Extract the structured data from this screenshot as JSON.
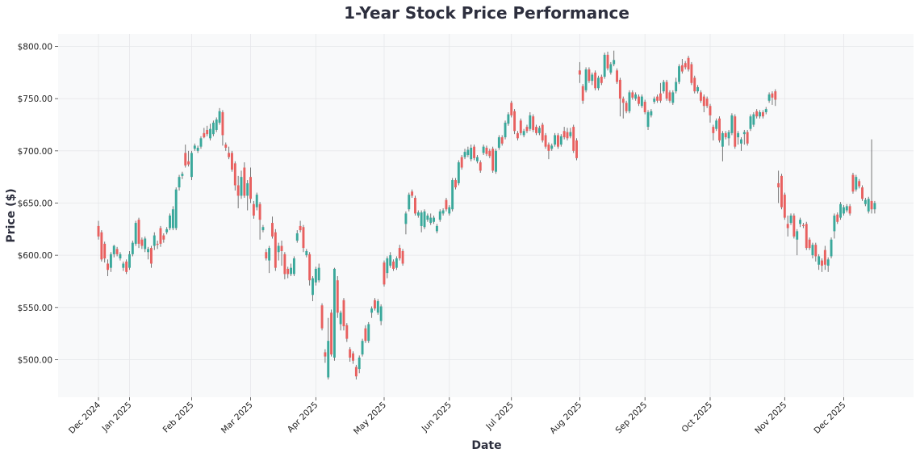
{
  "chart_data": {
    "type": "candlestick",
    "title": "1-Year Stock Price Performance",
    "xlabel": "Date",
    "ylabel": "Price ($)",
    "ylim": [
      464,
      812
    ],
    "xlim": [
      -13,
      262.5
    ],
    "grid": true,
    "up_color": "#3aa89b",
    "down_color": "#e8605f",
    "wick_color": "#666666",
    "background": "#f8f9fa",
    "y_ticks": [
      {
        "value": 500,
        "label": "$500.00"
      },
      {
        "value": 550,
        "label": "$550.00"
      },
      {
        "value": 600,
        "label": "$600.00"
      },
      {
        "value": 650,
        "label": "$650.00"
      },
      {
        "value": 700,
        "label": "$700.00"
      },
      {
        "value": 750,
        "label": "$750.00"
      },
      {
        "value": 800,
        "label": "$800.00"
      }
    ],
    "x_ticks": [
      {
        "index": 0,
        "label": "Dec 2024"
      },
      {
        "index": 10,
        "label": "Jan 2025"
      },
      {
        "index": 30,
        "label": "Feb 2025"
      },
      {
        "index": 49,
        "label": "Mar 2025"
      },
      {
        "index": 70,
        "label": "Apr 2025"
      },
      {
        "index": 92,
        "label": "May 2025"
      },
      {
        "index": 113,
        "label": "Jun 2025"
      },
      {
        "index": 133,
        "label": "Jul 2025"
      },
      {
        "index": 155,
        "label": "Aug 2025"
      },
      {
        "index": 176,
        "label": "Sep 2025"
      },
      {
        "index": 197,
        "label": "Oct 2025"
      },
      {
        "index": 221,
        "label": "Nov 2025"
      },
      {
        "index": 240,
        "label": "Dec 2025"
      }
    ],
    "ohlc_fields": [
      "open",
      "high",
      "low",
      "close"
    ],
    "ohlc": [
      [
        628,
        633,
        615,
        618
      ],
      [
        622,
        624,
        594,
        596
      ],
      [
        611,
        613,
        593,
        597
      ],
      [
        592,
        596,
        580,
        586
      ],
      [
        588,
        603,
        584,
        601
      ],
      [
        601,
        610,
        598,
        609
      ],
      [
        606,
        608,
        599,
        601
      ],
      [
        597,
        603,
        595,
        601
      ],
      [
        588,
        594,
        585,
        592
      ],
      [
        594,
        596,
        582,
        584
      ],
      [
        588,
        604,
        586,
        601
      ],
      [
        601,
        614,
        599,
        612
      ],
      [
        611,
        633,
        609,
        631
      ],
      [
        634,
        636,
        607,
        611
      ],
      [
        615,
        617,
        606,
        609
      ],
      [
        606,
        618,
        603,
        616
      ],
      [
        603,
        608,
        596,
        606
      ],
      [
        607,
        609,
        588,
        592
      ],
      [
        609,
        622,
        605,
        619
      ],
      [
        611,
        614,
        606,
        610
      ],
      [
        626,
        628,
        608,
        611
      ],
      [
        619,
        621,
        612,
        615
      ],
      [
        622,
        627,
        620,
        625
      ],
      [
        626,
        640,
        624,
        638
      ],
      [
        626,
        647,
        624,
        644
      ],
      [
        626,
        665,
        624,
        663
      ],
      [
        665,
        677,
        662,
        675
      ],
      [
        676,
        680,
        673,
        678
      ],
      [
        698,
        706,
        684,
        686
      ],
      [
        690,
        700,
        685,
        687
      ],
      [
        675,
        700,
        672,
        698
      ],
      [
        702,
        707,
        700,
        705
      ],
      [
        700,
        705,
        698,
        703
      ],
      [
        704,
        714,
        702,
        712
      ],
      [
        717,
        722,
        712,
        713
      ],
      [
        720,
        724,
        714,
        716
      ],
      [
        712,
        726,
        710,
        721
      ],
      [
        716,
        729,
        714,
        727
      ],
      [
        720,
        732,
        718,
        730
      ],
      [
        727,
        741,
        725,
        738
      ],
      [
        737,
        739,
        705,
        715
      ],
      [
        706,
        708,
        700,
        703
      ],
      [
        698,
        704,
        692,
        694
      ],
      [
        698,
        700,
        680,
        682
      ],
      [
        688,
        690,
        662,
        667
      ],
      [
        667,
        676,
        645,
        657
      ],
      [
        657,
        681,
        654,
        675
      ],
      [
        684,
        689,
        655,
        657
      ],
      [
        657,
        672,
        643,
        669
      ],
      [
        675,
        684,
        650,
        654
      ],
      [
        649,
        652,
        635,
        638
      ],
      [
        646,
        660,
        643,
        658
      ],
      [
        649,
        651,
        615,
        634
      ],
      [
        624,
        629,
        622,
        627
      ],
      [
        603,
        606,
        595,
        597
      ],
      [
        595,
        609,
        583,
        607
      ],
      [
        631,
        637,
        616,
        618
      ],
      [
        622,
        625,
        585,
        588
      ],
      [
        603,
        612,
        595,
        609
      ],
      [
        609,
        614,
        590,
        604
      ],
      [
        601,
        603,
        577,
        582
      ],
      [
        587,
        589,
        578,
        582
      ],
      [
        582,
        592,
        580,
        588
      ],
      [
        582,
        599,
        580,
        597
      ],
      [
        614,
        624,
        612,
        621
      ],
      [
        628,
        633,
        622,
        624
      ],
      [
        627,
        629,
        603,
        607
      ],
      [
        600,
        606,
        598,
        604
      ],
      [
        601,
        603,
        571,
        576
      ],
      [
        562,
        580,
        556,
        578
      ],
      [
        574,
        589,
        571,
        587
      ],
      [
        576,
        592,
        574,
        588
      ],
      [
        552,
        554,
        528,
        530
      ],
      [
        507,
        510,
        497,
        503
      ],
      [
        483,
        540,
        481,
        518
      ],
      [
        545,
        548,
        503,
        505
      ],
      [
        502,
        588,
        499,
        587
      ],
      [
        576,
        580,
        540,
        545
      ],
      [
        534,
        547,
        528,
        545
      ],
      [
        557,
        559,
        528,
        532
      ],
      [
        533,
        535,
        517,
        520
      ],
      [
        510,
        512,
        498,
        502
      ],
      [
        506,
        508,
        496,
        499
      ],
      [
        493,
        495,
        481,
        484
      ],
      [
        491,
        504,
        487,
        502
      ],
      [
        505,
        520,
        503,
        518
      ],
      [
        530,
        533,
        516,
        518
      ],
      [
        518,
        536,
        516,
        534
      ],
      [
        545,
        551,
        540,
        549
      ],
      [
        557,
        559,
        547,
        549
      ],
      [
        545,
        558,
        543,
        556
      ],
      [
        537,
        553,
        533,
        551
      ],
      [
        593,
        595,
        570,
        572
      ],
      [
        583,
        599,
        578,
        597
      ],
      [
        590,
        603,
        588,
        600
      ],
      [
        594,
        596,
        585,
        587
      ],
      [
        588,
        599,
        586,
        597
      ],
      [
        607,
        610,
        595,
        597
      ],
      [
        604,
        606,
        590,
        592
      ],
      [
        630,
        642,
        620,
        640
      ],
      [
        644,
        660,
        642,
        658
      ],
      [
        661,
        663,
        655,
        657
      ],
      [
        655,
        657,
        638,
        640
      ],
      [
        638,
        643,
        636,
        641
      ],
      [
        628,
        643,
        622,
        641
      ],
      [
        627,
        644,
        625,
        642
      ],
      [
        634,
        640,
        632,
        638
      ],
      [
        631,
        640,
        629,
        636
      ],
      [
        632,
        638,
        630,
        636
      ],
      [
        623,
        630,
        621,
        628
      ],
      [
        634,
        644,
        632,
        642
      ],
      [
        640,
        645,
        638,
        643
      ],
      [
        653,
        655,
        642,
        644
      ],
      [
        640,
        648,
        638,
        646
      ],
      [
        644,
        674,
        642,
        672
      ],
      [
        672,
        674,
        663,
        665
      ],
      [
        669,
        691,
        667,
        689
      ],
      [
        694,
        696,
        682,
        684
      ],
      [
        694,
        702,
        692,
        699
      ],
      [
        696,
        704,
        694,
        701
      ],
      [
        692,
        706,
        690,
        703
      ],
      [
        704,
        706,
        691,
        693
      ],
      [
        690,
        696,
        688,
        694
      ],
      [
        689,
        691,
        679,
        681
      ],
      [
        698,
        706,
        696,
        704
      ],
      [
        703,
        705,
        695,
        697
      ],
      [
        700,
        702,
        693,
        695
      ],
      [
        702,
        704,
        679,
        681
      ],
      [
        680,
        702,
        678,
        700
      ],
      [
        703,
        715,
        701,
        713
      ],
      [
        713,
        715,
        705,
        707
      ],
      [
        713,
        729,
        711,
        727
      ],
      [
        726,
        737,
        724,
        735
      ],
      [
        746,
        748,
        732,
        734
      ],
      [
        738,
        740,
        716,
        719
      ],
      [
        717,
        719,
        710,
        712
      ],
      [
        729,
        731,
        715,
        717
      ],
      [
        715,
        721,
        713,
        719
      ],
      [
        723,
        725,
        717,
        719
      ],
      [
        721,
        737,
        719,
        734
      ],
      [
        733,
        735,
        718,
        720
      ],
      [
        723,
        725,
        715,
        717
      ],
      [
        717,
        724,
        715,
        722
      ],
      [
        725,
        727,
        708,
        710
      ],
      [
        715,
        717,
        702,
        704
      ],
      [
        706,
        708,
        692,
        700
      ],
      [
        702,
        707,
        700,
        705
      ],
      [
        706,
        717,
        704,
        715
      ],
      [
        715,
        717,
        702,
        704
      ],
      [
        706,
        716,
        704,
        714
      ],
      [
        719,
        723,
        711,
        713
      ],
      [
        718,
        722,
        710,
        712
      ],
      [
        714,
        722,
        712,
        718
      ],
      [
        723,
        725,
        698,
        700
      ],
      [
        710,
        712,
        691,
        693
      ],
      [
        777,
        785,
        765,
        773
      ],
      [
        762,
        764,
        745,
        748
      ],
      [
        758,
        780,
        756,
        778
      ],
      [
        778,
        780,
        765,
        767
      ],
      [
        767,
        775,
        763,
        773
      ],
      [
        775,
        777,
        758,
        760
      ],
      [
        760,
        772,
        758,
        770
      ],
      [
        771,
        773,
        763,
        765
      ],
      [
        771,
        794,
        769,
        792
      ],
      [
        792,
        795,
        777,
        779
      ],
      [
        775,
        785,
        773,
        783
      ],
      [
        783,
        796,
        781,
        787
      ],
      [
        777,
        779,
        764,
        766
      ],
      [
        768,
        770,
        733,
        750
      ],
      [
        750,
        752,
        731,
        746
      ],
      [
        746,
        748,
        736,
        738
      ],
      [
        738,
        758,
        736,
        756
      ],
      [
        756,
        758,
        749,
        751
      ],
      [
        750,
        756,
        748,
        754
      ],
      [
        752,
        754,
        743,
        745
      ],
      [
        743,
        754,
        741,
        752
      ],
      [
        747,
        749,
        735,
        737
      ],
      [
        723,
        739,
        720,
        737
      ],
      [
        734,
        740,
        732,
        738
      ],
      [
        747,
        752,
        745,
        750
      ],
      [
        752,
        754,
        746,
        748
      ],
      [
        755,
        765,
        746,
        748
      ],
      [
        757,
        768,
        755,
        766
      ],
      [
        766,
        768,
        748,
        750
      ],
      [
        756,
        758,
        746,
        748
      ],
      [
        746,
        758,
        744,
        756
      ],
      [
        757,
        770,
        755,
        766
      ],
      [
        766,
        783,
        764,
        781
      ],
      [
        782,
        788,
        774,
        776
      ],
      [
        784,
        786,
        778,
        780
      ],
      [
        789,
        791,
        776,
        778
      ],
      [
        783,
        785,
        763,
        765
      ],
      [
        770,
        772,
        755,
        757
      ],
      [
        757,
        763,
        755,
        761
      ],
      [
        756,
        758,
        746,
        748
      ],
      [
        752,
        754,
        737,
        743
      ],
      [
        750,
        752,
        741,
        743
      ],
      [
        743,
        745,
        727,
        734
      ],
      [
        723,
        725,
        710,
        717
      ],
      [
        721,
        731,
        719,
        729
      ],
      [
        731,
        733,
        708,
        710
      ],
      [
        704,
        719,
        690,
        717
      ],
      [
        717,
        719,
        711,
        713
      ],
      [
        712,
        720,
        705,
        718
      ],
      [
        717,
        736,
        715,
        734
      ],
      [
        733,
        735,
        702,
        704
      ],
      [
        713,
        719,
        706,
        717
      ],
      [
        707,
        713,
        700,
        711
      ],
      [
        716,
        720,
        706,
        718
      ],
      [
        718,
        720,
        705,
        707
      ],
      [
        721,
        735,
        719,
        733
      ],
      [
        725,
        737,
        723,
        735
      ],
      [
        738,
        740,
        731,
        733
      ],
      [
        733,
        739,
        731,
        737
      ],
      [
        737,
        739,
        731,
        733
      ],
      [
        737,
        742,
        735,
        740
      ],
      [
        748,
        756,
        746,
        754
      ],
      [
        755,
        757,
        744,
        751
      ],
      [
        757,
        759,
        743,
        749
      ],
      [
        669,
        681,
        650,
        665
      ],
      [
        676,
        678,
        644,
        646
      ],
      [
        658,
        660,
        634,
        636
      ],
      [
        630,
        638,
        618,
        626
      ],
      [
        631,
        640,
        629,
        638
      ],
      [
        638,
        640,
        616,
        618
      ],
      [
        615,
        625,
        600,
        623
      ],
      [
        630,
        636,
        627,
        634
      ],
      [
        629,
        631,
        626,
        628
      ],
      [
        630,
        632,
        605,
        607
      ],
      [
        615,
        617,
        605,
        607
      ],
      [
        600,
        612,
        597,
        610
      ],
      [
        610,
        612,
        594,
        599
      ],
      [
        591,
        601,
        586,
        599
      ],
      [
        595,
        597,
        584,
        590
      ],
      [
        605,
        609,
        586,
        591
      ],
      [
        590,
        598,
        584,
        596
      ],
      [
        599,
        617,
        597,
        615
      ],
      [
        623,
        640,
        616,
        638
      ],
      [
        639,
        641,
        630,
        632
      ],
      [
        636,
        651,
        634,
        649
      ],
      [
        640,
        648,
        638,
        646
      ],
      [
        643,
        649,
        641,
        647
      ],
      [
        647,
        649,
        638,
        640
      ],
      [
        677,
        679,
        659,
        661
      ],
      [
        663,
        677,
        661,
        675
      ],
      [
        671,
        673,
        664,
        666
      ],
      [
        665,
        667,
        652,
        654
      ],
      [
        649,
        655,
        647,
        653
      ],
      [
        642,
        656,
        640,
        654
      ],
      [
        652,
        711,
        640,
        644
      ],
      [
        644,
        652,
        640,
        650
      ]
    ]
  }
}
